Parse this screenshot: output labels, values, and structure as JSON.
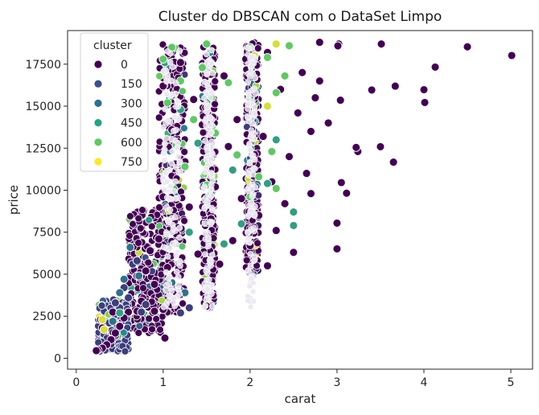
{
  "chart_data": {
    "type": "scatter",
    "title": "Cluster do DBSCAN com o DataSet Limpo",
    "xlabel": "carat",
    "ylabel": "price",
    "xlim": [
      -0.1,
      5.25
    ],
    "ylim": [
      -650,
      19500
    ],
    "x_ticks": [
      0,
      1,
      2,
      3,
      4,
      5
    ],
    "y_ticks": [
      0,
      2500,
      5000,
      7500,
      10000,
      12500,
      15000,
      17500
    ],
    "grid": false,
    "legend": {
      "title": "cluster",
      "placement": "top-left",
      "entries": [
        {
          "label": "0",
          "color": "#440154"
        },
        {
          "label": "150",
          "color": "#3b518b"
        },
        {
          "label": "300",
          "color": "#2c718e"
        },
        {
          "label": "450",
          "color": "#21a685"
        },
        {
          "label": "600",
          "color": "#5ec962"
        },
        {
          "label": "750",
          "color": "#fde725"
        }
      ]
    },
    "hue_range": [
      0,
      800
    ],
    "series": [
      {
        "cluster": 0,
        "points": [
          [
            5.01,
            18018
          ],
          [
            4.5,
            18531
          ],
          [
            4.13,
            17329
          ],
          [
            4.01,
            15223
          ],
          [
            4.0,
            15984
          ],
          [
            3.67,
            16193
          ],
          [
            3.65,
            11668
          ],
          [
            3.51,
            18701
          ],
          [
            3.5,
            12587
          ],
          [
            3.4,
            15964
          ],
          [
            3.24,
            12300
          ],
          [
            3.22,
            12545
          ],
          [
            3.11,
            9823
          ],
          [
            3.05,
            10453
          ],
          [
            3.04,
            15354
          ],
          [
            3.02,
            18700
          ],
          [
            3.01,
            18593
          ],
          [
            3.0,
            8040
          ],
          [
            3.0,
            6512
          ],
          [
            2.9,
            14000
          ],
          [
            2.8,
            16500
          ],
          [
            2.8,
            18800
          ],
          [
            2.75,
            15500
          ],
          [
            2.7,
            13500
          ],
          [
            2.7,
            9800
          ],
          [
            2.65,
            11000
          ],
          [
            2.6,
            17000
          ],
          [
            2.55,
            14600
          ],
          [
            2.5,
            7900
          ],
          [
            2.5,
            6300
          ],
          [
            2.45,
            12000
          ],
          [
            2.4,
            9200
          ],
          [
            2.35,
            16000
          ],
          [
            2.3,
            7600
          ],
          [
            2.25,
            10500
          ],
          [
            2.2,
            18200
          ],
          [
            2.2,
            5500
          ],
          [
            2.15,
            13200
          ],
          [
            2.1,
            8500
          ],
          [
            2.05,
            15800
          ],
          [
            2.0,
            5100
          ],
          [
            2.0,
            6700
          ],
          [
            2.0,
            11300
          ],
          [
            1.95,
            17800
          ],
          [
            1.9,
            9500
          ],
          [
            1.85,
            14200
          ],
          [
            1.8,
            7000
          ],
          [
            1.75,
            12600
          ],
          [
            1.7,
            16800
          ],
          [
            1.65,
            5600
          ],
          [
            1.6,
            10200
          ],
          [
            1.55,
            8300
          ],
          [
            1.5,
            4100
          ],
          [
            1.5,
            3100
          ],
          [
            1.5,
            18700
          ],
          [
            1.45,
            13900
          ],
          [
            1.4,
            6200
          ],
          [
            1.35,
            15400
          ],
          [
            1.3,
            9000
          ],
          [
            1.25,
            11700
          ],
          [
            1.2,
            3800
          ],
          [
            1.2,
            17600
          ],
          [
            1.15,
            7400
          ],
          [
            1.1,
            13600
          ],
          [
            1.05,
            5400
          ],
          [
            1.0,
            9600
          ],
          [
            1.0,
            2900
          ],
          [
            1.0,
            16200
          ],
          [
            0.95,
            7100
          ],
          [
            0.9,
            2800
          ],
          [
            0.9,
            4400
          ],
          [
            0.85,
            6400
          ],
          [
            0.8,
            5200
          ],
          [
            0.75,
            3400
          ],
          [
            0.7,
            2800
          ],
          [
            0.7,
            4900
          ],
          [
            0.6,
            2750
          ],
          [
            0.55,
            2400
          ],
          [
            0.5,
            1900
          ],
          [
            0.45,
            1500
          ],
          [
            0.4,
            1100
          ],
          [
            0.35,
            800
          ],
          [
            0.3,
            600
          ],
          [
            0.25,
            500
          ],
          [
            0.23,
            450
          ],
          [
            0.28,
            2300
          ],
          [
            0.3,
            1800
          ],
          [
            0.42,
            2750
          ],
          [
            0.5,
            2700
          ],
          [
            1.02,
            1200
          ]
        ]
      },
      {
        "cluster": 150,
        "points": [
          [
            0.5,
            3000
          ],
          [
            0.6,
            3600
          ],
          [
            0.65,
            5600
          ],
          [
            0.7,
            5800
          ],
          [
            0.55,
            4200
          ],
          [
            0.45,
            3300
          ],
          [
            0.75,
            2750
          ],
          [
            0.8,
            3200
          ],
          [
            1.2,
            2700
          ],
          [
            1.3,
            3000
          ],
          [
            0.38,
            2100
          ]
        ]
      },
      {
        "cluster": 300,
        "points": [
          [
            0.62,
            6600
          ],
          [
            0.55,
            4700
          ],
          [
            0.5,
            3900
          ],
          [
            0.72,
            4900
          ],
          [
            1.1,
            4500
          ],
          [
            1.25,
            3900
          ],
          [
            0.42,
            2200
          ]
        ]
      },
      {
        "cluster": 450,
        "points": [
          [
            2.5,
            8700
          ],
          [
            2.5,
            7900
          ],
          [
            1.02,
            17600
          ],
          [
            1.2,
            14800
          ],
          [
            1.4,
            12800
          ],
          [
            1.55,
            9800
          ],
          [
            1.7,
            6800
          ],
          [
            1.8,
            11200
          ],
          [
            2.0,
            15400
          ],
          [
            2.3,
            13000
          ],
          [
            1.9,
            8000
          ],
          [
            0.5,
            2700
          ],
          [
            1.3,
            7500
          ],
          [
            2.2,
            10400
          ]
        ]
      },
      {
        "cluster": 600,
        "points": [
          [
            1.1,
            18500
          ],
          [
            1.0,
            17800
          ],
          [
            1.5,
            18700
          ],
          [
            2.0,
            18500
          ],
          [
            2.2,
            17900
          ],
          [
            2.3,
            15800
          ],
          [
            1.2,
            16500
          ],
          [
            1.35,
            14200
          ],
          [
            1.6,
            13400
          ],
          [
            1.75,
            16400
          ],
          [
            1.85,
            12100
          ],
          [
            2.1,
            10800
          ],
          [
            2.25,
            12300
          ],
          [
            2.4,
            16800
          ],
          [
            1.05,
            15200
          ],
          [
            1.25,
            11400
          ],
          [
            1.5,
            10300
          ],
          [
            2.0,
            9600
          ],
          [
            2.3,
            10100
          ],
          [
            1.15,
            12700
          ],
          [
            1.45,
            17300
          ],
          [
            2.45,
            18600
          ]
        ]
      },
      {
        "cluster": 750,
        "points": [
          [
            0.3,
            2300
          ],
          [
            0.32,
            1700
          ],
          [
            2.3,
            18700
          ],
          [
            2.05,
            18000
          ],
          [
            2.2,
            15000
          ]
        ]
      }
    ],
    "dense_bands": [
      {
        "x_range": [
          0.95,
          1.25
        ],
        "y_range": [
          2700,
          18800
        ],
        "cluster": 0
      },
      {
        "x_range": [
          1.45,
          1.6
        ],
        "y_range": [
          3000,
          18800
        ],
        "cluster": 0
      },
      {
        "x_range": [
          1.95,
          2.1
        ],
        "y_range": [
          5000,
          18800
        ],
        "cluster": 0
      },
      {
        "x_range": [
          0.6,
          1.0
        ],
        "y_range": [
          1500,
          9000
        ],
        "cluster": 0
      },
      {
        "x_range": [
          0.25,
          0.6
        ],
        "y_range": [
          400,
          3500
        ],
        "cluster": 150
      }
    ]
  }
}
